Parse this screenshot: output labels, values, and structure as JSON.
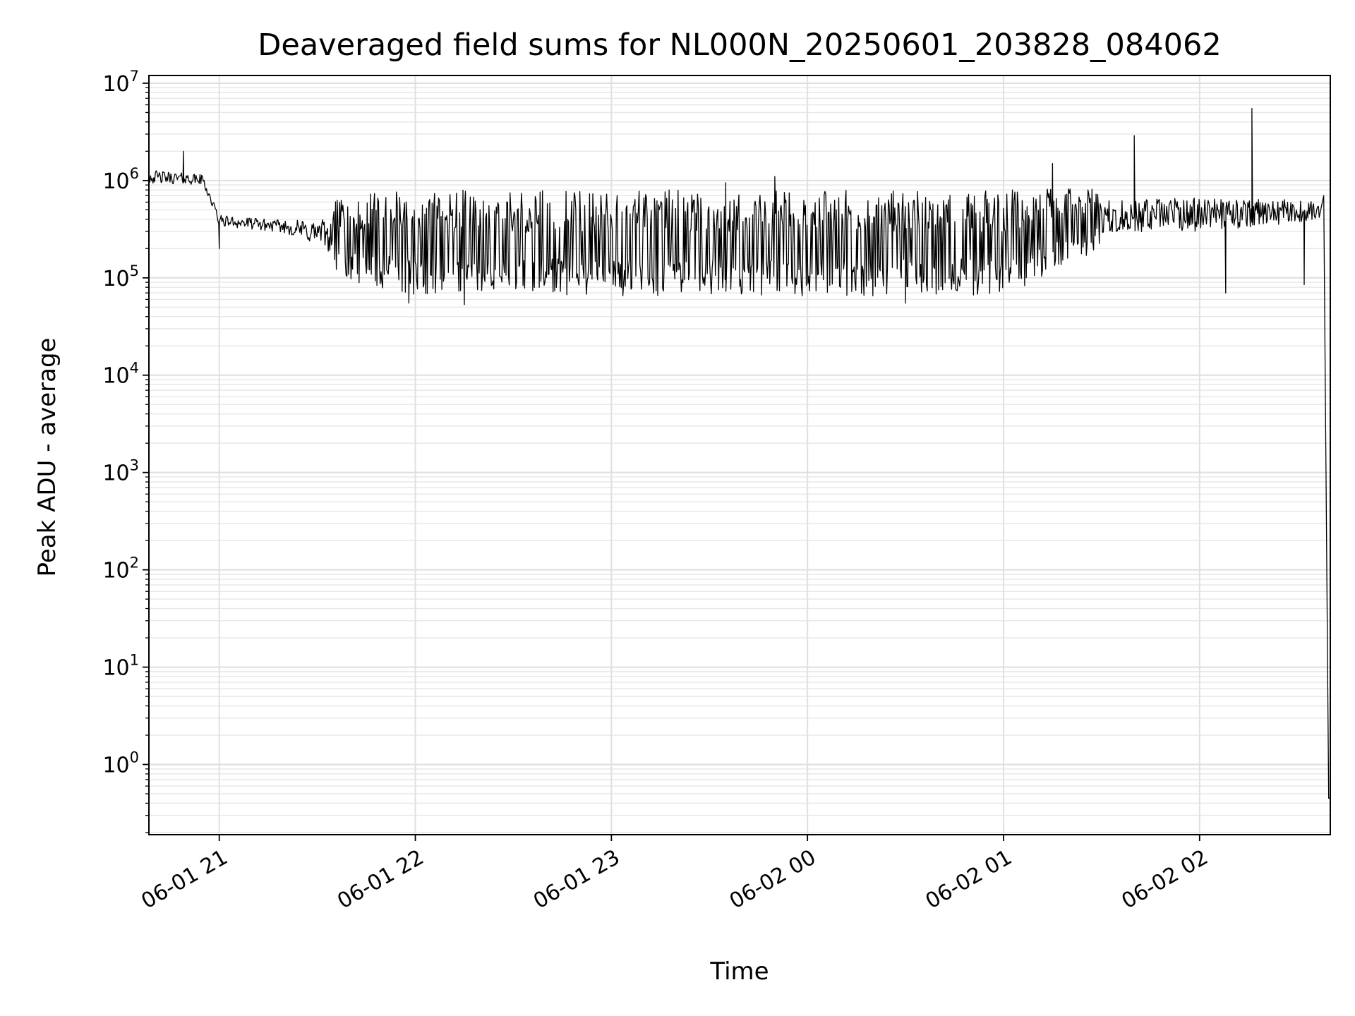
{
  "chart_data": {
    "type": "line",
    "title": "Deaveraged field sums for NL000N_20250601_203828_084062",
    "xlabel": "Time",
    "ylabel": "Peak ADU - average",
    "yscale": "log",
    "ylim": [
      0.19,
      12000000
    ],
    "xlim": [
      "2025-06-01 20:38:28",
      "2025-06-02 02:40:00"
    ],
    "grid": true,
    "x_ticks": [
      {
        "t": "2025-06-01 21:00",
        "label": "06-01 21"
      },
      {
        "t": "2025-06-01 22:00",
        "label": "06-01 22"
      },
      {
        "t": "2025-06-01 23:00",
        "label": "06-01 23"
      },
      {
        "t": "2025-06-02 00:00",
        "label": "06-02 00"
      },
      {
        "t": "2025-06-02 01:00",
        "label": "06-02 01"
      },
      {
        "t": "2025-06-02 02:00",
        "label": "06-02 02"
      }
    ],
    "y_ticks": [
      {
        "value": 1,
        "base": "10",
        "exp": "0"
      },
      {
        "value": 10,
        "base": "10",
        "exp": "1"
      },
      {
        "value": 100,
        "base": "10",
        "exp": "2"
      },
      {
        "value": 1000,
        "base": "10",
        "exp": "3"
      },
      {
        "value": 10000,
        "base": "10",
        "exp": "4"
      },
      {
        "value": 100000,
        "base": "10",
        "exp": "5"
      },
      {
        "value": 1000000,
        "base": "10",
        "exp": "6"
      },
      {
        "value": 10000000,
        "base": "10",
        "exp": "7"
      }
    ],
    "series": [
      {
        "color": "#000000",
        "envelope": [
          {
            "t": "2025-06-01 20:38:28",
            "low": 800000,
            "high": 1500000
          },
          {
            "t": "2025-06-01 20:55:00",
            "low": 800000,
            "high": 1300000
          },
          {
            "t": "2025-06-01 21:00:00",
            "low": 300000,
            "high": 500000
          },
          {
            "t": "2025-06-01 21:20:00",
            "low": 250000,
            "high": 450000
          },
          {
            "t": "2025-06-01 21:40:00",
            "low": 90000,
            "high": 700000
          },
          {
            "t": "2025-06-01 22:00:00",
            "low": 65000,
            "high": 800000
          },
          {
            "t": "2025-06-02 01:00:00",
            "low": 65000,
            "high": 800000
          },
          {
            "t": "2025-06-02 01:30:00",
            "low": 200000,
            "high": 900000
          },
          {
            "t": "2025-06-02 02:00:00",
            "low": 200000,
            "high": 1000000
          },
          {
            "t": "2025-06-02 02:37:00",
            "low": 300000,
            "high": 800000
          }
        ],
        "points": [
          {
            "t": "2025-06-01 20:49:00",
            "y": 2000000
          },
          {
            "t": "2025-06-01 21:00:00",
            "y": 200000
          },
          {
            "t": "2025-06-01 21:58:00",
            "y": 55000
          },
          {
            "t": "2025-06-01 22:15:00",
            "y": 53000
          },
          {
            "t": "2025-06-01 23:35:00",
            "y": 950000
          },
          {
            "t": "2025-06-01 23:50:00",
            "y": 1100000
          },
          {
            "t": "2025-06-02 00:30:00",
            "y": 55000
          },
          {
            "t": "2025-06-02 01:15:00",
            "y": 1500000
          },
          {
            "t": "2025-06-02 01:40:00",
            "y": 2900000
          },
          {
            "t": "2025-06-02 02:08:00",
            "y": 70000
          },
          {
            "t": "2025-06-02 02:16:00",
            "y": 5500000
          },
          {
            "t": "2025-06-02 02:32:00",
            "y": 85000
          },
          {
            "t": "2025-06-02 02:38:00",
            "y": 700000
          },
          {
            "t": "2025-06-02 02:39:30",
            "y": 0.45
          },
          {
            "t": "2025-06-02 02:40:00",
            "y": 0.45
          }
        ]
      }
    ]
  }
}
